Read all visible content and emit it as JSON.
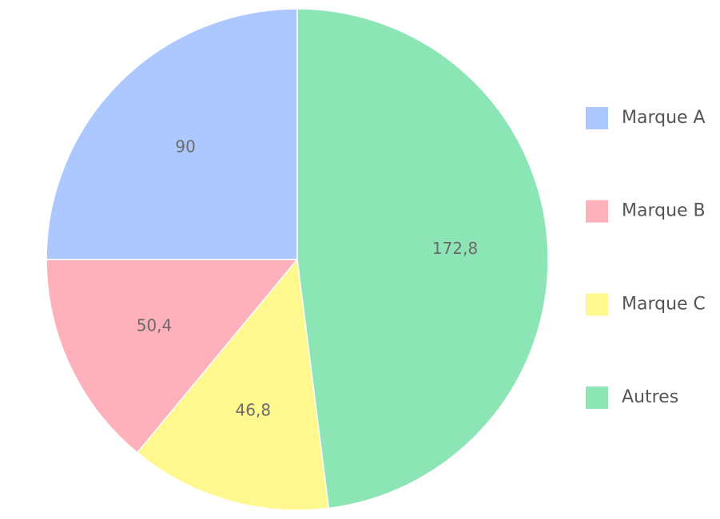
{
  "chart_data": {
    "type": "pie",
    "categories": [
      "Marque A",
      "Marque B",
      "Marque C",
      "Autres"
    ],
    "values": [
      90,
      50.4,
      46.8,
      172.8
    ],
    "value_labels": [
      "90",
      "50,4",
      "46,8",
      "172,8"
    ],
    "colors": [
      "#adc8ff",
      "#ffb1bb",
      "#fff88e",
      "#8ce5b5"
    ],
    "legend": "right"
  }
}
